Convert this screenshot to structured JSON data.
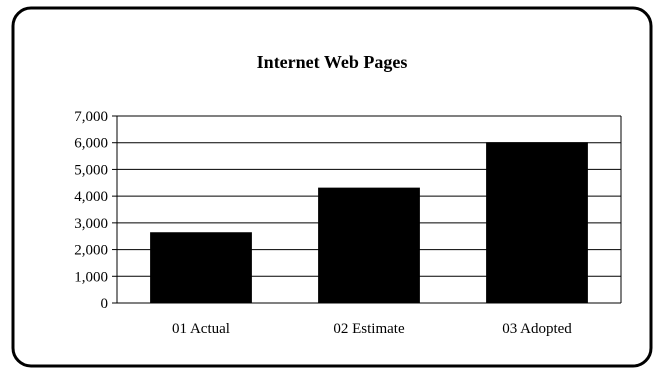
{
  "chart_data": {
    "type": "bar",
    "title": "Internet Web Pages",
    "xlabel": "",
    "ylabel": "",
    "categories": [
      "01 Actual",
      "02 Estimate",
      "03 Adopted"
    ],
    "values": [
      2630,
      4300,
      6000
    ],
    "ylim": [
      0,
      7000
    ],
    "yticks": [
      0,
      1000,
      2000,
      3000,
      4000,
      5000,
      6000,
      7000
    ],
    "ytick_labels": [
      "0",
      "1,000",
      "2,000",
      "3,000",
      "4,000",
      "5,000",
      "6,000",
      "7,000"
    ],
    "grid": true,
    "legend": "none",
    "bar_color": "#000000"
  }
}
